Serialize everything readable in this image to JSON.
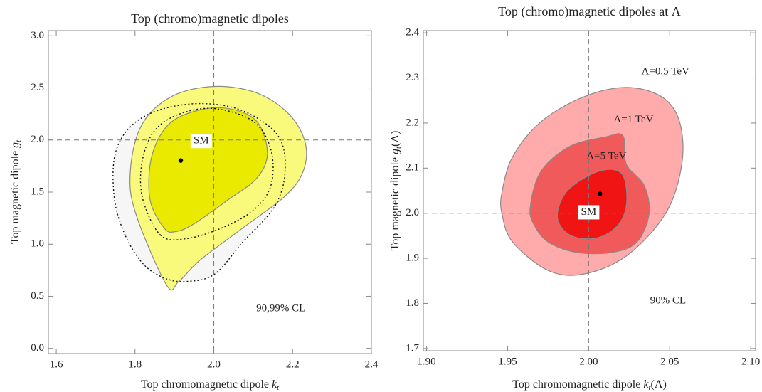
{
  "chart_data": [
    {
      "type": "contour",
      "title": "Top (chromo)magnetic dipoles",
      "x_label": {
        "text": "Top chromomagnetic dipole",
        "symbol": "k",
        "sub": "t"
      },
      "y_label": {
        "text": "Top magnetic dipole",
        "symbol": "g",
        "sub": "t"
      },
      "xlim": [
        1.58,
        2.4
      ],
      "ylim": [
        -0.05,
        3.05
      ],
      "xticks": [
        1.6,
        1.8,
        {
          "value": 2,
          "label": "2.0"
        },
        2.2,
        2.4
      ],
      "yticks": [
        {
          "value": 0,
          "label": "0.0"
        },
        0.5,
        {
          "value": 1,
          "label": "1.0"
        },
        1.5,
        {
          "value": 2,
          "label": "2.0"
        },
        2.5,
        {
          "value": 3,
          "label": "3.0"
        }
      ],
      "reference": {
        "x": 2,
        "y": 2
      },
      "series": [
        {
          "color": "#f6f6f6",
          "style": "dotted",
          "x": [
            1.775,
            1.748,
            1.748,
            1.784,
            1.856,
            1.965,
            2.073,
            2.163,
            2.181,
            2.154,
            2.073,
            2.001,
            1.929,
            1.874,
            1.82
          ],
          "y": [
            1.086,
            1.428,
            1.837,
            2.111,
            2.281,
            2.35,
            2.281,
            2.042,
            1.701,
            1.359,
            1.018,
            0.71,
            0.642,
            0.676,
            0.813
          ]
        },
        {
          "color": "#f9f97c",
          "style": "solid",
          "x": [
            1.88,
            1.802,
            1.788,
            1.817,
            1.893,
            2.001,
            2.109,
            2.191,
            2.232,
            2.227,
            2.181,
            2.073,
            1.965,
            1.911
          ],
          "y": [
            0.608,
            1.291,
            1.701,
            2.145,
            2.418,
            2.514,
            2.452,
            2.247,
            1.974,
            1.701,
            1.462,
            1.154,
            0.847,
            0.642
          ]
        },
        {
          "color": "#eaea00",
          "style": "solid",
          "x": [
            1.874,
            1.838,
            1.842,
            1.884,
            1.956,
            2.037,
            2.109,
            2.136,
            2.109,
            2.037,
            1.947,
            1.902
          ],
          "y": [
            1.154,
            1.428,
            1.837,
            2.145,
            2.281,
            2.302,
            2.179,
            1.872,
            1.633,
            1.428,
            1.189,
            1.12
          ]
        },
        {
          "color": "none",
          "style": "dotted",
          "x": [
            1.865,
            1.82,
            1.817,
            1.847,
            1.911,
            2.001,
            2.1,
            2.145,
            2.145,
            2.1,
            2.019,
            1.929
          ],
          "y": [
            1.086,
            1.428,
            1.769,
            2.077,
            2.247,
            2.302,
            2.179,
            1.906,
            1.564,
            1.325,
            1.154,
            1.052
          ]
        }
      ],
      "points": [
        {
          "x": 1.916,
          "y": 1.803
        }
      ],
      "annotations": [
        "SM",
        "90,99% CL"
      ]
    },
    {
      "type": "contour",
      "title": "Top (chromo)magnetic dipoles at Λ",
      "x_label": {
        "text": "Top chromomagnetic dipole",
        "symbol": "k",
        "sub": "t",
        "suffix": "(Λ)"
      },
      "y_label": {
        "text": "Top magnetic dipole",
        "symbol": "g",
        "sub": "t",
        "suffix": "(Λ)"
      },
      "xlim": [
        1.898,
        2.103
      ],
      "ylim": [
        1.695,
        2.405
      ],
      "xticks": [
        {
          "value": 1.9,
          "label": "1.90"
        },
        1.95,
        {
          "value": 2,
          "label": "2.00"
        },
        2.05,
        {
          "value": 2.1,
          "label": "2.10"
        }
      ],
      "yticks": [
        1.7,
        1.8,
        1.9,
        {
          "value": 2,
          "label": "2.0"
        },
        2.1,
        2.2,
        2.3,
        2.4
      ],
      "reference": {
        "x": 2,
        "y": 2
      },
      "series": [
        {
          "name": "Λ=0.5 TeV",
          "color": "#ffabab",
          "style": "solid",
          "x": [
            1.9465,
            1.9531,
            1.9706,
            1.9969,
            2.0232,
            2.0452,
            2.0561,
            2.0575,
            2.0474,
            2.0232,
            1.9969,
            1.975,
            1.9531,
            1.9465
          ],
          "y": [
            2.046,
            2.125,
            2.203,
            2.258,
            2.279,
            2.258,
            2.203,
            2.109,
            1.999,
            1.905,
            1.865,
            1.873,
            1.936,
            1.999
          ]
        },
        {
          "name": "Λ=1 TeV",
          "color": "#f05a5a",
          "style": "solid",
          "x": [
            1.964,
            1.9706,
            1.9882,
            2.0101,
            2.0211,
            2.0232,
            2.0342,
            2.0373,
            2.0298,
            2.0145,
            1.9925,
            1.975,
            1.9662
          ],
          "y": [
            2.015,
            2.093,
            2.148,
            2.169,
            2.172,
            2.109,
            2.062,
            1.999,
            1.936,
            1.913,
            1.913,
            1.936,
            1.975
          ]
        },
        {
          "name": "Λ=5 TeV",
          "color": "#f01414",
          "style": "solid",
          "x": [
            1.9807,
            1.986,
            2.0013,
            2.0145,
            2.0219,
            2.0232,
            2.0167,
            2.0035,
            1.9882
          ],
          "y": [
            1.991,
            2.046,
            2.086,
            2.097,
            2.078,
            2.015,
            1.968,
            1.944,
            1.952
          ]
        }
      ],
      "points": [
        {
          "x": 2.007,
          "y": 2.043
        }
      ],
      "annotations": [
        "SM",
        "90% CL"
      ]
    }
  ]
}
